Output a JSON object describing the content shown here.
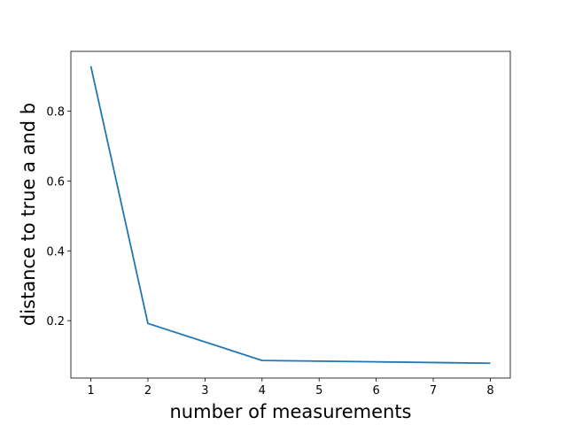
{
  "chart_data": {
    "type": "line",
    "x_label": "number of measurements",
    "y_label": "distance to true a and b",
    "x": [
      1,
      2,
      4,
      8
    ],
    "series": [
      {
        "color": "#1f77b4",
        "values": [
          0.929,
          0.192,
          0.086,
          0.078
        ]
      }
    ],
    "xlim": [
      0.65,
      8.35
    ],
    "xticks": [
      1,
      2,
      3,
      4,
      5,
      6,
      7,
      8
    ],
    "ylim": [
      0.0355,
      0.9716
    ],
    "yticks": [
      0.2,
      0.4,
      0.6,
      0.8
    ]
  }
}
